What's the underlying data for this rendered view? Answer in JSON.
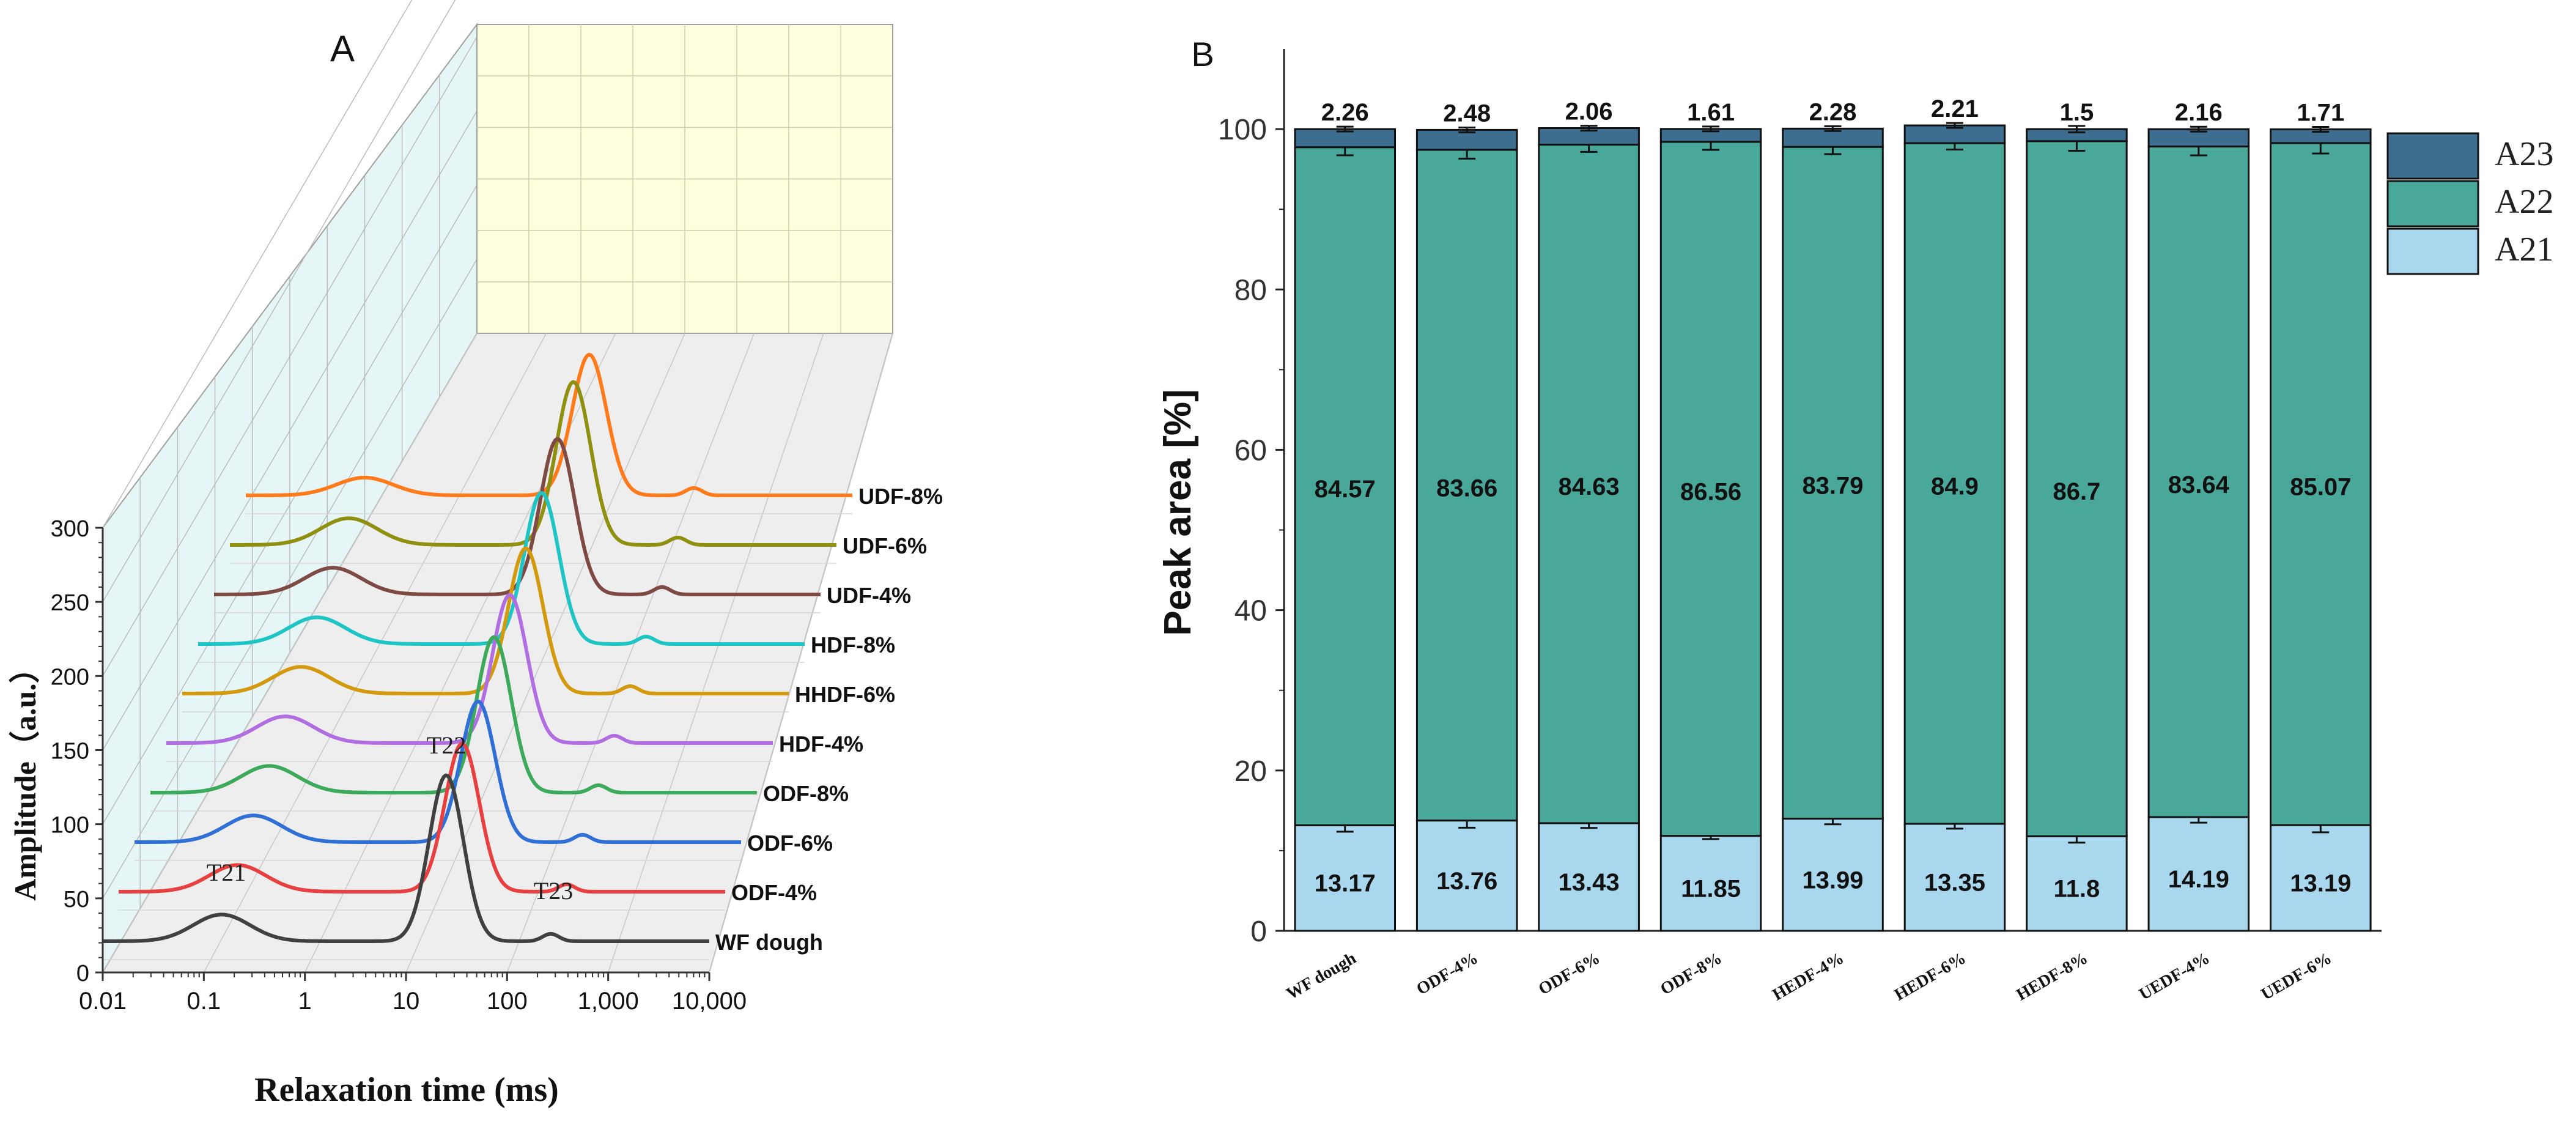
{
  "panel_a": {
    "label": "A",
    "ylabel": "Amplitude（a.u.）",
    "xlabel": "Relaxation time (ms)",
    "y_ticks": [
      "0",
      "50",
      "100",
      "150",
      "200",
      "250",
      "300"
    ],
    "x_ticks": [
      "0.01",
      "0.1",
      "1",
      "10",
      "100",
      "1,000",
      "10,000"
    ],
    "peak_labels": [
      "T21",
      "T22",
      "T23"
    ]
  },
  "panel_b": {
    "label": "B",
    "ylabel": "Peak area [%]",
    "y_ticks": [
      "0",
      "20",
      "40",
      "60",
      "80",
      "100"
    ]
  },
  "chart_data": [
    {
      "type": "line",
      "title": "",
      "xlabel": "Relaxation time (ms)",
      "ylabel": "Amplitude（a.u.）",
      "x_scale": "log",
      "xlim": [
        0.01,
        10000
      ],
      "ylim": [
        0,
        300
      ],
      "series": [
        {
          "name": "WF dough",
          "color": "#404040",
          "peaks": [
            {
              "t": 0.15,
              "amp": 18
            },
            {
              "t": 25,
              "amp": 112
            },
            {
              "t": 270,
              "amp": 5
            }
          ]
        },
        {
          "name": "ODF-4%",
          "color": "#e84040",
          "peaks": [
            {
              "t": 0.15,
              "amp": 18
            },
            {
              "t": 25,
              "amp": 100
            },
            {
              "t": 270,
              "amp": 5
            }
          ]
        },
        {
          "name": "ODF-6%",
          "color": "#2f6fd6",
          "peaks": [
            {
              "t": 0.15,
              "amp": 18
            },
            {
              "t": 25,
              "amp": 95
            },
            {
              "t": 270,
              "amp": 5
            }
          ]
        },
        {
          "name": "ODF-8%",
          "color": "#3caa5a",
          "peaks": [
            {
              "t": 0.15,
              "amp": 18
            },
            {
              "t": 25,
              "amp": 105
            },
            {
              "t": 270,
              "amp": 5
            }
          ]
        },
        {
          "name": "HDF-4%",
          "color": "#b06ee0",
          "peaks": [
            {
              "t": 0.15,
              "amp": 18
            },
            {
              "t": 25,
              "amp": 100
            },
            {
              "t": 270,
              "amp": 5
            }
          ]
        },
        {
          "name": "HHDF-6%",
          "color": "#d39a10",
          "peaks": [
            {
              "t": 0.15,
              "amp": 18
            },
            {
              "t": 25,
              "amp": 98
            },
            {
              "t": 270,
              "amp": 5
            }
          ]
        },
        {
          "name": "HDF-8%",
          "color": "#1fc4c4",
          "peaks": [
            {
              "t": 0.15,
              "amp": 18
            },
            {
              "t": 25,
              "amp": 102
            },
            {
              "t": 270,
              "amp": 5
            }
          ]
        },
        {
          "name": "UDF-4%",
          "color": "#7e4a44",
          "peaks": [
            {
              "t": 0.15,
              "amp": 18
            },
            {
              "t": 25,
              "amp": 105
            },
            {
              "t": 270,
              "amp": 5
            }
          ]
        },
        {
          "name": "UDF-6%",
          "color": "#8f8f10",
          "peaks": [
            {
              "t": 0.15,
              "amp": 18
            },
            {
              "t": 25,
              "amp": 110
            },
            {
              "t": 270,
              "amp": 5
            }
          ]
        },
        {
          "name": "UDF-8%",
          "color": "#ff7a1a",
          "peaks": [
            {
              "t": 0.15,
              "amp": 12
            },
            {
              "t": 25,
              "amp": 95
            },
            {
              "t": 270,
              "amp": 5
            }
          ]
        }
      ]
    },
    {
      "type": "bar",
      "stacked": true,
      "title": "",
      "xlabel": "",
      "ylabel": "Peak area [%]",
      "ylim": [
        0,
        110
      ],
      "categories": [
        "WF dough",
        "ODF-4%",
        "ODF-6%",
        "ODF-8%",
        "HEDF-4%",
        "HEDF-6%",
        "HEDF-8%",
        "UEDF-4%",
        "UEDF-6%"
      ],
      "series": [
        {
          "name": "A21",
          "color": "#a9d8ee",
          "values": [
            13.17,
            13.76,
            13.43,
            11.85,
            13.99,
            13.35,
            11.8,
            14.19,
            13.19
          ],
          "errors": [
            0.8,
            0.9,
            0.6,
            0.4,
            0.7,
            0.6,
            0.8,
            0.7,
            0.9
          ]
        },
        {
          "name": "A22",
          "color": "#4aa89a",
          "values": [
            84.57,
            83.66,
            84.63,
            86.56,
            83.79,
            84.9,
            86.7,
            83.64,
            85.07
          ],
          "errors": [
            1.0,
            1.1,
            0.9,
            1.0,
            0.9,
            0.8,
            1.2,
            1.1,
            1.3
          ]
        },
        {
          "name": "A23",
          "color": "#3d6e8f",
          "values": [
            2.26,
            2.48,
            2.06,
            1.61,
            2.28,
            2.21,
            1.5,
            2.16,
            1.71
          ],
          "errors": [
            0.3,
            0.3,
            0.3,
            0.3,
            0.3,
            0.3,
            0.4,
            0.3,
            0.3
          ]
        }
      ],
      "legend": {
        "position": "top-right",
        "entries": [
          "A23",
          "A22",
          "A21"
        ]
      }
    }
  ]
}
